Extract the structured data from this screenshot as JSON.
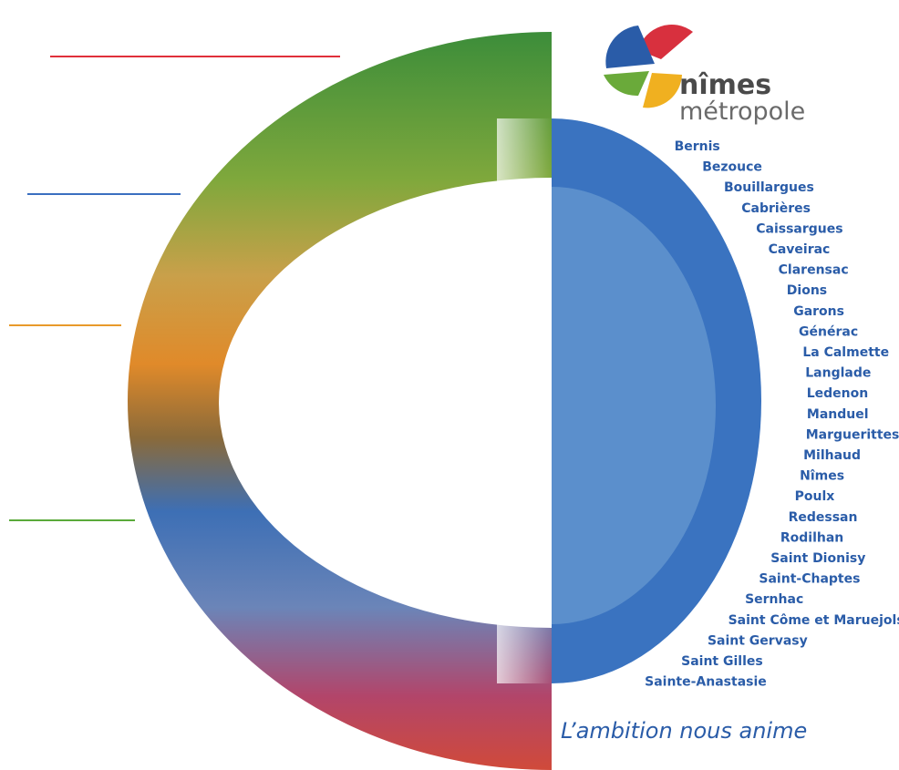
{
  "logo": {
    "name": "nîmes",
    "subtitle": "métropole"
  },
  "communes": [
    "Bernis",
    "Bezouce",
    "Bouillargues",
    "Cabrières",
    "Caissargues",
    "Caveirac",
    "Clarensac",
    "Dions",
    "Garons",
    "Générac",
    "La Calmette",
    "Langlade",
    "Ledenon",
    "Manduel",
    "Marguerittes",
    "Milhaud",
    "Nîmes",
    "Poulx",
    "Redessan",
    "Rodilhan",
    "Saint Dionisy",
    "Saint-Chaptes",
    "Sernhac",
    "Saint Côme et Maruejols",
    "Saint Gervasy",
    "Saint Gilles",
    "Sainte-Anastasie"
  ],
  "slogan": "L’ambition nous anime"
}
